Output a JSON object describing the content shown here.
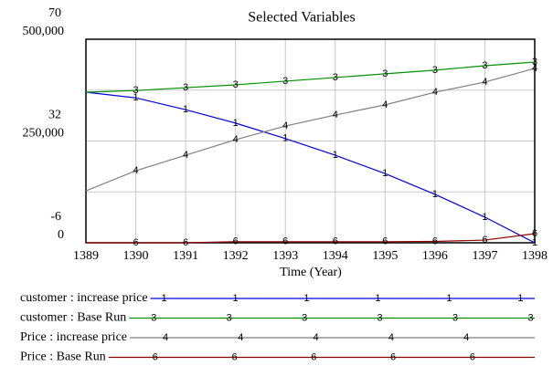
{
  "chart_data": {
    "type": "line",
    "title": "Selected Variables",
    "x_label": "Time (Year)",
    "x": [
      1389,
      1390,
      1391,
      1392,
      1393,
      1394,
      1395,
      1396,
      1397,
      1398
    ],
    "xlim": [
      1389,
      1398
    ],
    "xticks": [
      1389,
      1390,
      1391,
      1392,
      1393,
      1394,
      1395,
      1396,
      1397,
      1398
    ],
    "ylim": [
      0,
      500000
    ],
    "yticks": [
      {
        "value": 0,
        "label": "0"
      },
      {
        "value": 250000,
        "label": "250,000"
      },
      {
        "value": 500000,
        "label": "500,000"
      }
    ],
    "y2lim": [
      -6,
      70
    ],
    "y2ticks": [
      -6,
      32,
      70
    ],
    "grid": true,
    "series": [
      {
        "name": "customer : increase price",
        "marker": "1",
        "color": "#0000e0",
        "axis": "y",
        "values": [
          370000,
          356000,
          327000,
          294000,
          256000,
          215000,
          170000,
          119000,
          63000,
          0
        ]
      },
      {
        "name": "customer : Base Run",
        "marker": "3",
        "color": "#009000",
        "axis": "y",
        "values": [
          370000,
          374000,
          381000,
          388000,
          397000,
          406000,
          415000,
          424000,
          435000,
          444000
        ]
      },
      {
        "name": "Price : increase price",
        "marker": "4",
        "color": "#808080",
        "axis": "y2",
        "values": [
          13.4,
          20.9,
          26.7,
          32.5,
          37.6,
          41.7,
          45.5,
          50.2,
          54.0,
          59.1
        ]
      },
      {
        "name": "Price : Base Run",
        "marker": "6",
        "color": "#900000",
        "axis": "y2",
        "values": [
          -6,
          -6,
          -6,
          -5.6,
          -5.6,
          -5.6,
          -5.6,
          -5.5,
          -5,
          -2.6
        ]
      }
    ]
  }
}
